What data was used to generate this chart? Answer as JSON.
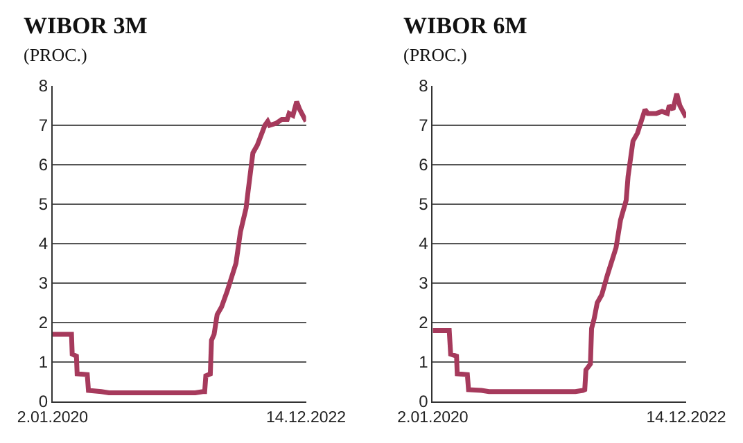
{
  "chart_data": [
    {
      "type": "line",
      "title": "WIBOR 3M",
      "subtitle": "(PROC.)",
      "grid": "y",
      "marker": "none",
      "line_style": "solid",
      "xlim": [
        "2020-01-02",
        "2022-12-14"
      ],
      "xticks": [
        {
          "value": "2020-01-02",
          "label": "2.01.2020"
        },
        {
          "value": "2022-12-14",
          "label": "14.12.2022"
        }
      ],
      "ylim": [
        0,
        8
      ],
      "yticks": [
        0,
        1,
        2,
        3,
        4,
        5,
        6,
        7,
        8
      ],
      "x": [
        "2020-01-02",
        "2020-03-22",
        "2020-03-25",
        "2020-04-12",
        "2020-04-15",
        "2020-05-28",
        "2020-06-02",
        "2020-07-27",
        "2020-08-28",
        "2021-08-30",
        "2021-10-01",
        "2021-10-09",
        "2021-10-14",
        "2021-11-02",
        "2021-11-07",
        "2021-11-18",
        "2021-12-01",
        "2021-12-20",
        "2022-01-13",
        "2022-02-19",
        "2022-03-10",
        "2022-04-03",
        "2022-04-11",
        "2022-05-02",
        "2022-05-21",
        "2022-06-22",
        "2022-07-04",
        "2022-07-12",
        "2022-08-09",
        "2022-09-02",
        "2022-09-25",
        "2022-10-03",
        "2022-10-19",
        "2022-11-04",
        "2022-11-17",
        "2022-12-14"
      ],
      "series": [
        {
          "color": "#a63a5c",
          "values": [
            1.7,
            1.7,
            1.2,
            1.15,
            0.7,
            0.68,
            0.28,
            0.25,
            0.22,
            0.22,
            0.25,
            0.25,
            0.65,
            0.7,
            1.55,
            1.7,
            2.2,
            2.4,
            2.8,
            3.5,
            4.3,
            4.9,
            5.3,
            6.3,
            6.5,
            7.0,
            7.1,
            7.0,
            7.05,
            7.15,
            7.15,
            7.3,
            7.25,
            7.6,
            7.4,
            7.1
          ]
        }
      ]
    },
    {
      "type": "line",
      "title": "WIBOR 6M",
      "subtitle": "(PROC.)",
      "grid": "y",
      "marker": "none",
      "line_style": "solid",
      "xlim": [
        "2020-01-02",
        "2022-12-14"
      ],
      "xticks": [
        {
          "value": "2020-01-02",
          "label": "2.01.2020"
        },
        {
          "value": "2022-12-14",
          "label": "14.12.2022"
        }
      ],
      "ylim": [
        0,
        8
      ],
      "yticks": [
        0,
        1,
        2,
        3,
        4,
        5,
        6,
        7,
        8
      ],
      "x": [
        "2020-01-02",
        "2020-03-12",
        "2020-03-18",
        "2020-04-12",
        "2020-04-15",
        "2020-05-28",
        "2020-06-02",
        "2020-07-27",
        "2020-08-28",
        "2021-08-30",
        "2021-10-01",
        "2021-10-09",
        "2021-10-14",
        "2021-11-02",
        "2021-11-07",
        "2021-11-18",
        "2021-12-01",
        "2021-12-20",
        "2022-01-13",
        "2022-02-19",
        "2022-03-10",
        "2022-04-03",
        "2022-04-11",
        "2022-05-02",
        "2022-05-21",
        "2022-06-22",
        "2022-07-04",
        "2022-08-09",
        "2022-09-02",
        "2022-09-25",
        "2022-10-03",
        "2022-10-19",
        "2022-11-04",
        "2022-11-17",
        "2022-12-14"
      ],
      "series": [
        {
          "color": "#a63a5c",
          "values": [
            1.8,
            1.8,
            1.2,
            1.15,
            0.7,
            0.68,
            0.3,
            0.28,
            0.25,
            0.25,
            0.28,
            0.3,
            0.8,
            0.95,
            1.85,
            2.1,
            2.5,
            2.7,
            3.2,
            3.9,
            4.6,
            5.1,
            5.7,
            6.6,
            6.8,
            7.4,
            7.3,
            7.3,
            7.35,
            7.3,
            7.5,
            7.4,
            7.8,
            7.5,
            7.2
          ]
        }
      ]
    }
  ]
}
